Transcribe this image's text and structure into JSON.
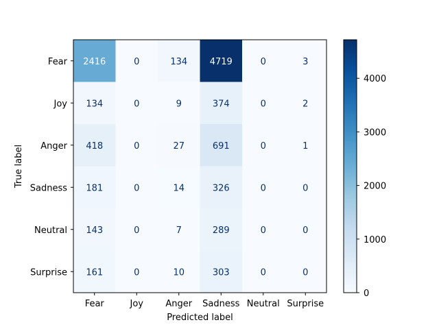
{
  "chart_data": {
    "type": "heatmap",
    "subtype": "confusion-matrix",
    "title": "",
    "xlabel": "Predicted label",
    "ylabel": "True label",
    "x_categories": [
      "Fear",
      "Joy",
      "Anger",
      "Sadness",
      "Neutral",
      "Surprise"
    ],
    "y_categories": [
      "Fear",
      "Joy",
      "Anger",
      "Sadness",
      "Neutral",
      "Surprise"
    ],
    "matrix": [
      [
        2416,
        0,
        134,
        4719,
        0,
        3
      ],
      [
        134,
        0,
        9,
        374,
        0,
        2
      ],
      [
        418,
        0,
        27,
        691,
        0,
        1
      ],
      [
        181,
        0,
        14,
        326,
        0,
        0
      ],
      [
        143,
        0,
        7,
        289,
        0,
        0
      ],
      [
        161,
        0,
        10,
        303,
        0,
        0
      ]
    ],
    "colormap": "Blues",
    "colorbar": {
      "range": [
        0,
        4719
      ],
      "ticks": [
        0,
        1000,
        2000,
        3000,
        4000
      ]
    },
    "colors": {
      "low": "#f7fbff",
      "high": "#08306b",
      "text_light": "#f7fbff",
      "text_dark": "#08306b"
    },
    "grid": false
  }
}
